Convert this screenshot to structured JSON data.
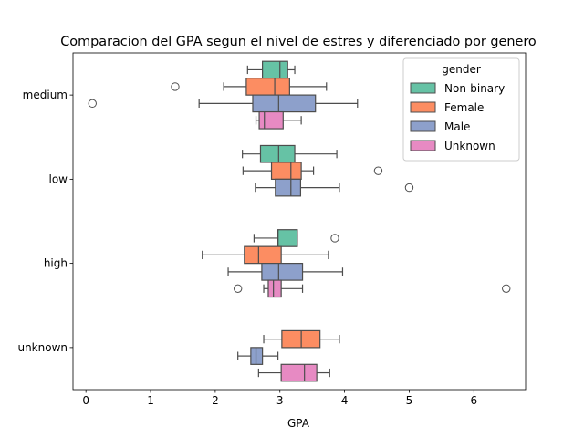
{
  "chart_data": {
    "type": "boxplot",
    "orientation": "horizontal",
    "title": "Comparacion del GPA segun el nivel de estres y diferenciado por genero",
    "xlabel": "GPA",
    "ylabel": "",
    "xlim": [
      -0.2,
      6.8
    ],
    "xticks": [
      0,
      1,
      2,
      3,
      4,
      5,
      6
    ],
    "categories": [
      "medium",
      "low",
      "high",
      "unknown"
    ],
    "legend": {
      "title": "gender",
      "placement": "upper right",
      "entries": [
        "Non-binary",
        "Female",
        "Male",
        "Unknown"
      ]
    },
    "colors": {
      "Non-binary": "#66c2a5",
      "Female": "#fc8d62",
      "Male": "#8da0cb",
      "Unknown": "#e78ac3",
      "line": "#4d4d4d"
    },
    "groups": [
      {
        "category": "medium",
        "boxes": [
          {
            "gender": "Non-binary",
            "whisker_low": 2.5,
            "q1": 2.73,
            "median": 3.0,
            "q3": 3.12,
            "whisker_high": 3.23,
            "outliers": []
          },
          {
            "gender": "Female",
            "whisker_low": 2.13,
            "q1": 2.48,
            "median": 2.92,
            "q3": 3.15,
            "whisker_high": 3.72,
            "outliers": [
              1.38
            ]
          },
          {
            "gender": "Male",
            "whisker_low": 1.75,
            "q1": 2.58,
            "median": 2.98,
            "q3": 3.55,
            "whisker_high": 4.2,
            "outliers": [
              0.1
            ]
          },
          {
            "gender": "Unknown",
            "whisker_low": 2.63,
            "q1": 2.68,
            "median": 2.76,
            "q3": 3.05,
            "whisker_high": 3.33,
            "outliers": []
          }
        ]
      },
      {
        "category": "low",
        "boxes": [
          {
            "gender": "Non-binary",
            "whisker_low": 2.42,
            "q1": 2.7,
            "median": 2.98,
            "q3": 3.23,
            "whisker_high": 3.88,
            "outliers": []
          },
          {
            "gender": "Female",
            "whisker_low": 2.43,
            "q1": 2.87,
            "median": 3.17,
            "q3": 3.33,
            "whisker_high": 3.52,
            "outliers": [
              4.52
            ]
          },
          {
            "gender": "Male",
            "whisker_low": 2.62,
            "q1": 2.93,
            "median": 3.17,
            "q3": 3.32,
            "whisker_high": 3.92,
            "outliers": [
              5.0
            ]
          }
        ]
      },
      {
        "category": "high",
        "boxes": [
          {
            "gender": "Non-binary",
            "whisker_low": 2.6,
            "q1": 2.97,
            "median": 2.97,
            "q3": 3.27,
            "whisker_high": 3.27,
            "outliers": [
              3.85
            ]
          },
          {
            "gender": "Female",
            "whisker_low": 1.8,
            "q1": 2.45,
            "median": 2.67,
            "q3": 3.02,
            "whisker_high": 3.75,
            "outliers": []
          },
          {
            "gender": "Male",
            "whisker_low": 2.2,
            "q1": 2.72,
            "median": 2.98,
            "q3": 3.35,
            "whisker_high": 3.97,
            "outliers": []
          },
          {
            "gender": "Unknown",
            "whisker_low": 2.75,
            "q1": 2.82,
            "median": 2.9,
            "q3": 3.02,
            "whisker_high": 3.35,
            "outliers": [
              2.35,
              6.5
            ]
          }
        ]
      },
      {
        "category": "unknown",
        "boxes": [
          {
            "gender": "Female",
            "whisker_low": 2.75,
            "q1": 3.03,
            "median": 3.33,
            "q3": 3.62,
            "whisker_high": 3.92,
            "outliers": []
          },
          {
            "gender": "Male",
            "whisker_low": 2.35,
            "q1": 2.55,
            "median": 2.63,
            "q3": 2.73,
            "whisker_high": 2.97,
            "outliers": []
          },
          {
            "gender": "Unknown",
            "whisker_low": 2.67,
            "q1": 3.02,
            "median": 3.38,
            "q3": 3.57,
            "whisker_high": 3.77,
            "outliers": []
          }
        ]
      }
    ]
  }
}
